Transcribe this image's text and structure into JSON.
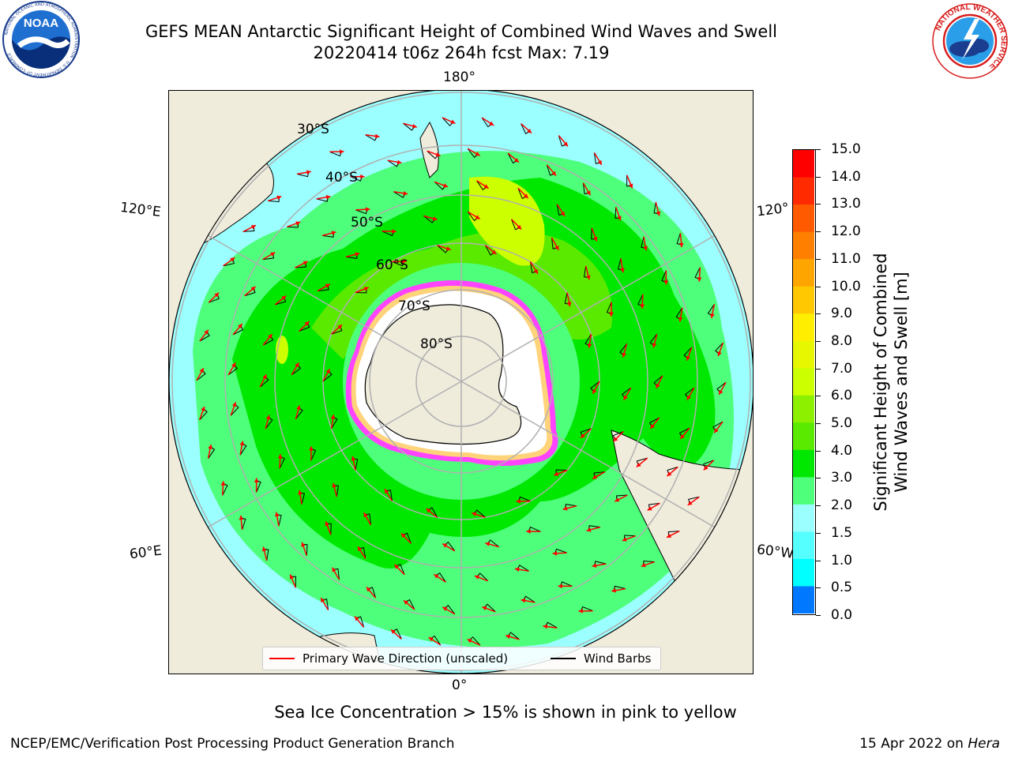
{
  "title_line1": "GEFS MEAN Antarctic Significant Height of Combined Wind Waves and Swell",
  "title_line2": "20220414 t06z 264h fcst   Max: 7.19",
  "map": {
    "longitude_labels": [
      "180°",
      "120°E",
      "120°",
      "60°E",
      "60°W",
      "0°"
    ],
    "latitude_labels": [
      "30°S",
      "40°S",
      "50°S",
      "60°S",
      "70°S",
      "80°S"
    ]
  },
  "legend": {
    "wave_direction_label": "Primary Wave Direction (unscaled)",
    "wind_barbs_label": "Wind Barbs",
    "wave_direction_color": "#ff0000",
    "wind_barbs_color": "#000000"
  },
  "colorbar": {
    "title_line1": "Significant Height of Combined",
    "title_line2": "Wind Waves and Swell [m]",
    "ticks": [
      "15.0",
      "14.0",
      "13.0",
      "12.0",
      "11.0",
      "10.0",
      "9.0",
      "8.0",
      "7.0",
      "6.0",
      "5.0",
      "4.0",
      "3.0",
      "2.0",
      "1.5",
      "1.0",
      "0.5",
      "0.0"
    ],
    "colors_top_to_bottom": [
      "#ff0000",
      "#ff2a00",
      "#ff5a00",
      "#ff7f00",
      "#ffa500",
      "#ffc800",
      "#ffee00",
      "#e6f700",
      "#ccff00",
      "#8cf000",
      "#5aea00",
      "#00e800",
      "#4dff7a",
      "#9bffff",
      "#55ffff",
      "#00ffff",
      "#0078ff",
      "#0000ff"
    ]
  },
  "sea_ice_note": "Sea Ice Concentration > 15% is shown in pink to yellow",
  "footer_left": "NCEP/EMC/Verification Post Processing Product Generation Branch",
  "footer_date": "15 Apr 2022 on ",
  "footer_host": "Hera",
  "logos": {
    "noaa": {
      "text": "NOAA",
      "ring_text": "NATIONAL OCEANIC AND ATMOSPHERIC ADMINISTRATION · U.S. DEPARTMENT OF COMMERCE"
    },
    "nws": {
      "ring_text": "NATIONAL WEATHER SERVICE"
    }
  }
}
